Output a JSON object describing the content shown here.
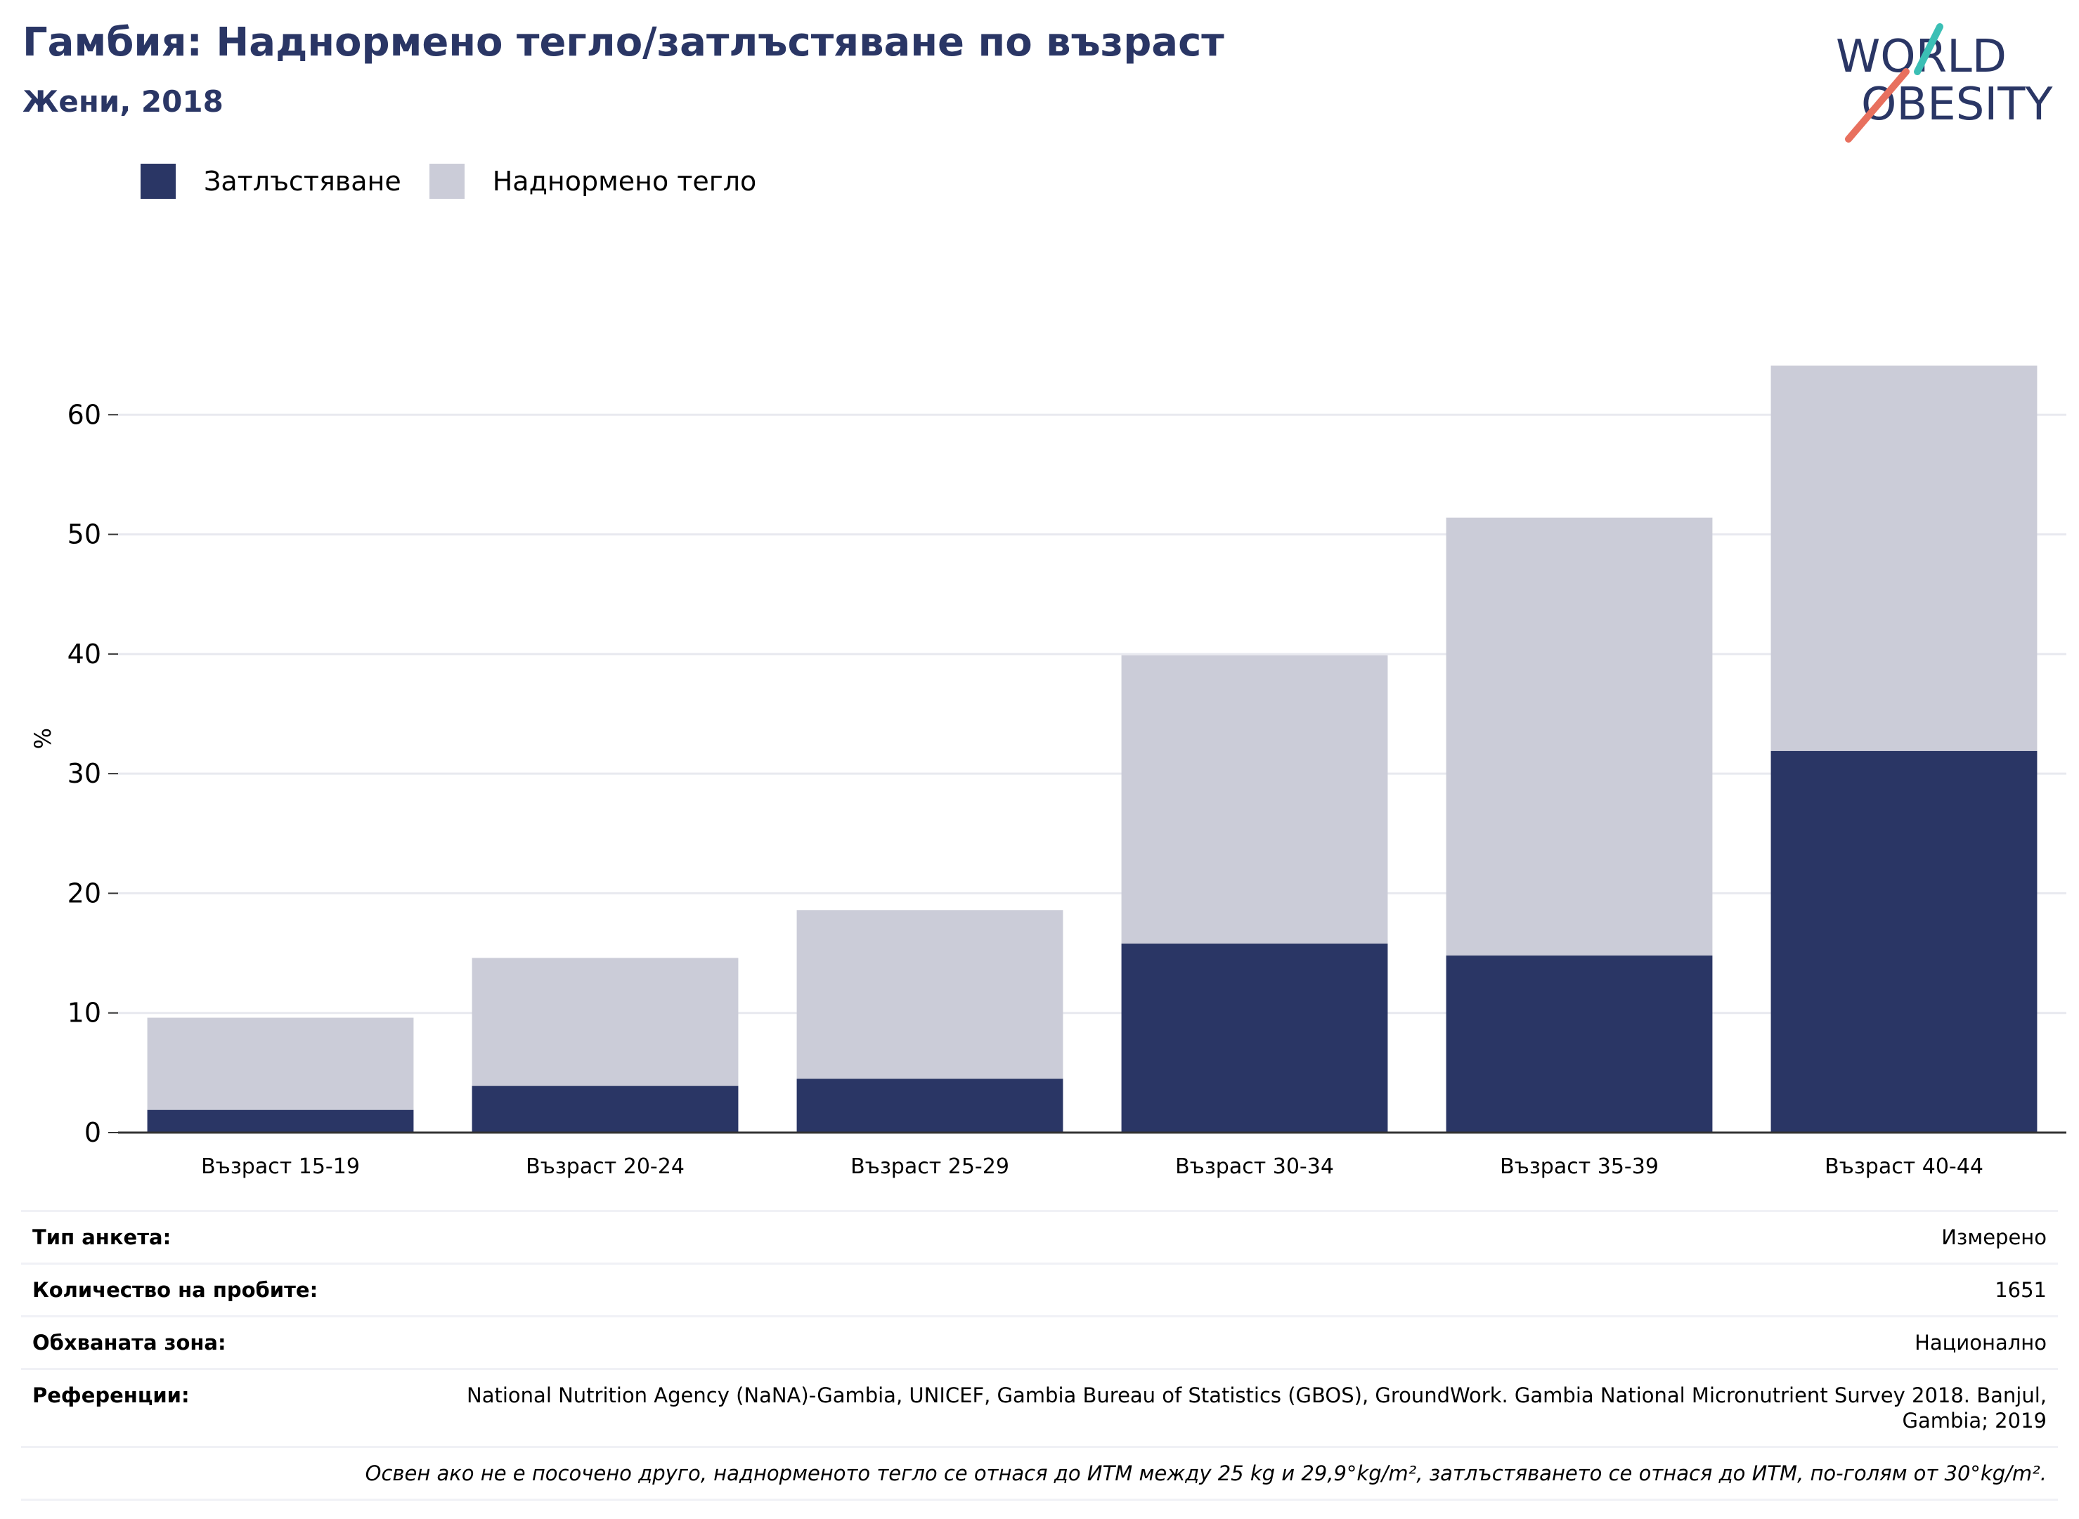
{
  "header": {
    "title": "Гамбия: Наднормено тегло/затлъстяване по възраст",
    "subtitle": "Жени, 2018"
  },
  "logo": {
    "line1": "WORLD",
    "line2": "OBESITY"
  },
  "colors": {
    "title": "#2a3665",
    "obesity": "#2a3665",
    "overweight": "#cbccd8",
    "logo_teal": "#3bbfb5",
    "logo_coral": "#e8705e"
  },
  "chart_data": {
    "type": "bar",
    "stacked": true,
    "title": "Гамбия: Наднормено тегло/затлъстяване по възраст",
    "subtitle": "Жени, 2018",
    "categories": [
      "Възраст 15-19",
      "Възраст 20-24",
      "Възраст 25-29",
      "Възраст 30-34",
      "Възраст 35-39",
      "Възраст 40-44"
    ],
    "series": [
      {
        "name": "Затлъстяване",
        "color": "#2a3665",
        "values": [
          1.9,
          3.9,
          4.5,
          15.8,
          14.8,
          31.9
        ]
      },
      {
        "name": "Наднормено тегло",
        "color": "#cbccd8",
        "values": [
          7.7,
          10.7,
          14.1,
          24.1,
          36.6,
          32.2
        ]
      }
    ],
    "ylabel": "%",
    "xlabel": "",
    "ylim": [
      0,
      70
    ],
    "yticks": [
      0,
      10,
      20,
      30,
      40,
      50,
      60
    ],
    "grid": true,
    "legend_position": "top-left"
  },
  "meta": {
    "rows": [
      {
        "label": "Тип анкета:",
        "value": "Измерено"
      },
      {
        "label": "Количество на пробите:",
        "value": "1651"
      },
      {
        "label": "Обхваната зона:",
        "value": "Национално"
      },
      {
        "label": "Референции:",
        "value": "National Nutrition Agency (NaNA)-Gambia, UNICEF, Gambia Bureau of Statistics (GBOS), GroundWork. Gambia National Micronutrient Survey 2018. Banjul, Gambia; 2019"
      }
    ],
    "note": "Освен ако не е посочено друго, наднорменото тегло се отнася до ИТМ между 25 kg и 29,9°kg/m², затлъстяването се отнася до ИТМ, по-голям от 30°kg/m²."
  }
}
